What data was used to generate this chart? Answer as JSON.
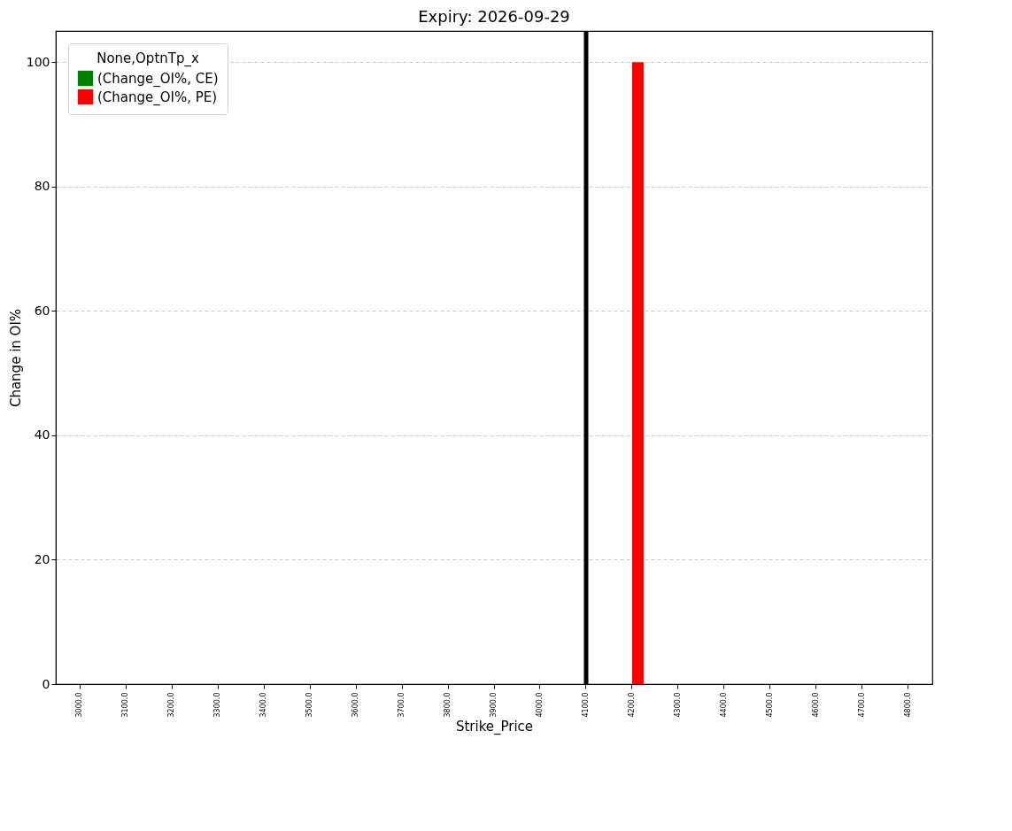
{
  "chart_data": {
    "type": "bar",
    "title": "Expiry: 2026-09-29",
    "xlabel": "Strike_Price",
    "ylabel": "Change in OI%",
    "legend_title": "None,OptnTp_x",
    "categories": [
      "3000.0",
      "3100.0",
      "3200.0",
      "3300.0",
      "3400.0",
      "3500.0",
      "3600.0",
      "3700.0",
      "3800.0",
      "3900.0",
      "4000.0",
      "4100.0",
      "4200.0",
      "4300.0",
      "4400.0",
      "4500.0",
      "4600.0",
      "4700.0",
      "4800.0"
    ],
    "series": [
      {
        "name": "(Change_OI%, CE)",
        "color": "#008000",
        "values": [
          0,
          0,
          0,
          0,
          0,
          0,
          0,
          0,
          0,
          0,
          0,
          0,
          0,
          0,
          0,
          0,
          0,
          0,
          0
        ]
      },
      {
        "name": "(Change_OI%, PE)",
        "color": "#ff0000",
        "values": [
          0,
          0,
          0,
          0,
          0,
          0,
          0,
          0,
          0,
          0,
          0,
          0,
          100,
          0,
          0,
          0,
          0,
          0,
          0
        ]
      }
    ],
    "ylim": [
      0,
      105
    ],
    "yticks": [
      0,
      20,
      40,
      60,
      80,
      100
    ],
    "grid": "y",
    "legend": "top left",
    "ref_lines": [
      {
        "axis": "x",
        "value": "4100.0",
        "color": "#000000"
      }
    ]
  }
}
